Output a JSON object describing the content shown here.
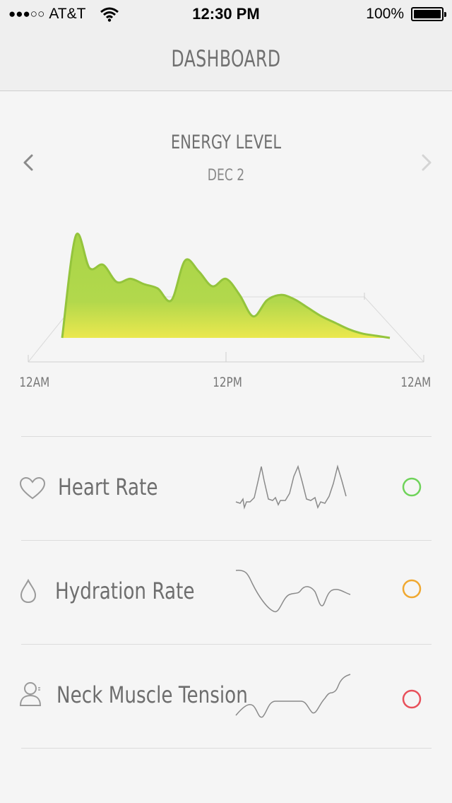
{
  "status_bar": {
    "signal_dots": "●●●○○",
    "carrier": "AT&T",
    "time": "12:30 PM",
    "battery": "100%"
  },
  "navbar": {
    "title": "DASHBOARD"
  },
  "energy": {
    "title": "ENERGY LEVEL",
    "date": "DEC 2",
    "prev_icon": "chevron-left-icon",
    "next_icon": "chevron-right-icon",
    "colors": {
      "top": "#a8d548",
      "bottom": "#ebe84e",
      "stroke": "#94c43c"
    }
  },
  "chart_data": {
    "type": "area",
    "xlabel": "",
    "ylabel": "",
    "x_ticks": [
      "12AM",
      "12PM",
      "12AM"
    ],
    "x": [
      0,
      1,
      2,
      3,
      4,
      5,
      6,
      7,
      8,
      9,
      10,
      11,
      12,
      13,
      14,
      15,
      16,
      17,
      18,
      19,
      20,
      21,
      22,
      23,
      24
    ],
    "values": [
      0,
      95,
      65,
      68,
      52,
      55,
      50,
      46,
      35,
      72,
      62,
      48,
      55,
      40,
      20,
      35,
      40,
      36,
      28,
      20,
      14,
      8,
      4,
      2,
      0
    ],
    "ylim": [
      0,
      100
    ],
    "grid": false
  },
  "metrics": [
    {
      "label": "Heart Rate",
      "icon": "heart-icon",
      "status_color": "#6fd35a",
      "spark_color": "#8a8a8a"
    },
    {
      "label": "Hydration Rate",
      "icon": "water-drop-icon",
      "status_color": "#f0a830",
      "spark_color": "#8a8a8a"
    },
    {
      "label": "Neck Muscle Tension",
      "icon": "person-icon",
      "status_color": "#e8505a",
      "spark_color": "#8a8a8a"
    }
  ]
}
